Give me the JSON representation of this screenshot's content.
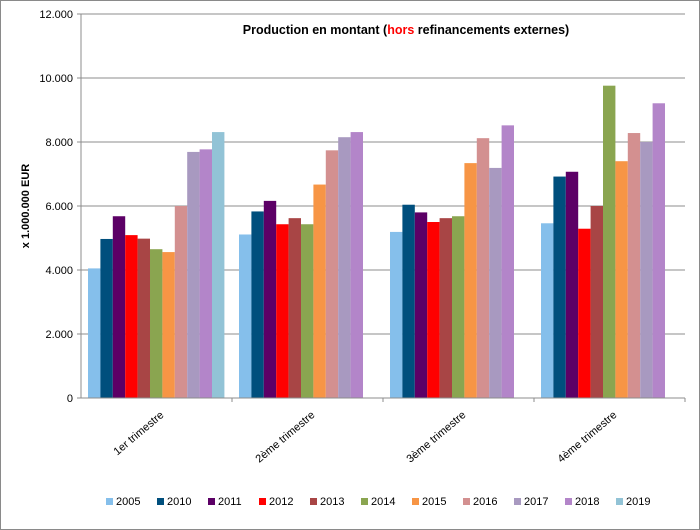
{
  "chart_data": {
    "type": "bar",
    "title_parts": [
      "Production en montant (",
      "hors",
      " refinancements externes)"
    ],
    "title_highlight_color": "#ff0000",
    "ylabel": "x 1.000.000  EUR",
    "xlabel": "",
    "ylim": [
      0,
      12000
    ],
    "yticks": [
      "0",
      "2.000",
      "4.000",
      "6.000",
      "8.000",
      "10.000",
      "12.000"
    ],
    "grid": true,
    "legend_position": "bottom",
    "categories": [
      "1er trimestre",
      "2ème trimestre",
      "3ème trimestre",
      "4ème trimestre"
    ],
    "series": [
      {
        "name": "2005",
        "color": "#85bfeb",
        "values": [
          4050,
          5110,
          5190,
          5460
        ]
      },
      {
        "name": "2010",
        "color": "#004f7d",
        "values": [
          4970,
          5830,
          6040,
          6920
        ]
      },
      {
        "name": "2011",
        "color": "#5c0066",
        "values": [
          5680,
          6160,
          5800,
          7070
        ]
      },
      {
        "name": "2012",
        "color": "#ff0000",
        "values": [
          5090,
          5430,
          5500,
          5290
        ]
      },
      {
        "name": "2013",
        "color": "#a84545",
        "values": [
          4980,
          5620,
          5620,
          6000
        ]
      },
      {
        "name": "2014",
        "color": "#8aa550",
        "values": [
          4650,
          5430,
          5680,
          9760
        ]
      },
      {
        "name": "2015",
        "color": "#f79545",
        "values": [
          4560,
          6670,
          7340,
          7400
        ]
      },
      {
        "name": "2016",
        "color": "#d39090",
        "values": [
          6000,
          7740,
          8120,
          8280
        ]
      },
      {
        "name": "2017",
        "color": "#a899c0",
        "values": [
          7690,
          8150,
          7190,
          8000
        ]
      },
      {
        "name": "2018",
        "color": "#b385c9",
        "values": [
          7770,
          8310,
          8520,
          9210
        ]
      },
      {
        "name": "2019",
        "color": "#92c3d6",
        "values": [
          8310,
          null,
          null,
          null
        ]
      }
    ]
  }
}
